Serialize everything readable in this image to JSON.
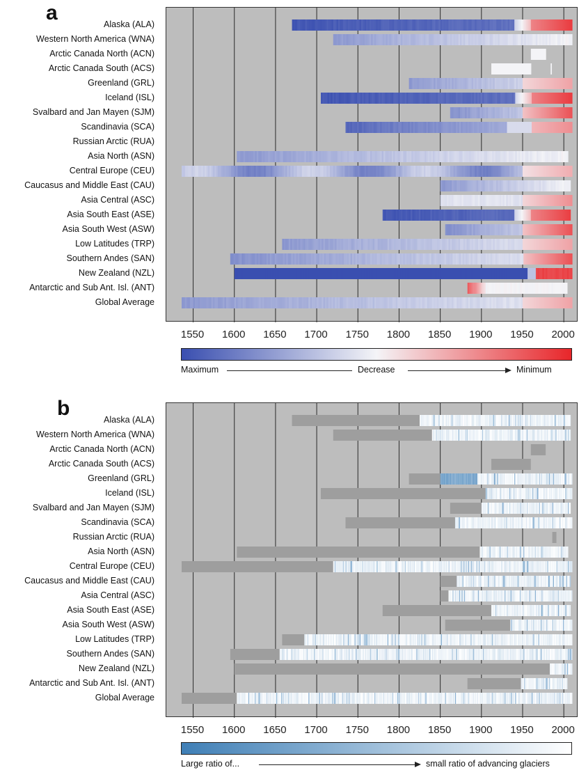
{
  "chart_data": [
    {
      "type": "heatmap",
      "panel_label": "a",
      "xticks": [
        "1550",
        "1600",
        "1650",
        "1700",
        "1750",
        "1800",
        "1850",
        "1900",
        "1950",
        "2000"
      ],
      "xlim": [
        1530,
        2012
      ],
      "regions": [
        {
          "label": "Alaska (ALA)",
          "start": 1670,
          "end": 2010,
          "pattern": "blue-red"
        },
        {
          "label": "Western North America (WNA)",
          "start": 1720,
          "end": 2010,
          "pattern": "lightblue"
        },
        {
          "label": "Arctic Canada North (ACN)",
          "start": 1960,
          "end": 1978,
          "pattern": "white"
        },
        {
          "label": "Arctic Canada South (ACS)",
          "start": 1912,
          "end": 1985,
          "pattern": "white-gap"
        },
        {
          "label": "Greenland (GRL)",
          "start": 1812,
          "end": 2010,
          "pattern": "lightblue-pink"
        },
        {
          "label": "Iceland (ISL)",
          "start": 1705,
          "end": 2010,
          "pattern": "blue-red"
        },
        {
          "label": "Svalbard and Jan Mayen (SJM)",
          "start": 1862,
          "end": 2010,
          "pattern": "lightblue-red"
        },
        {
          "label": "Scandinavia (SCA)",
          "start": 1735,
          "end": 2010,
          "pattern": "blue-pink"
        },
        {
          "label": "Russian Arctic (RUA)",
          "start": null,
          "end": null,
          "pattern": "none"
        },
        {
          "label": "Asia North (ASN)",
          "start": 1603,
          "end": 2005,
          "pattern": "lightblue"
        },
        {
          "label": "Central Europe (CEU)",
          "start": 1536,
          "end": 2010,
          "pattern": "mixed"
        },
        {
          "label": "Caucasus and Middle East (CAU)",
          "start": 1850,
          "end": 2008,
          "pattern": "lightblue"
        },
        {
          "label": "Asia Central (ASC)",
          "start": 1850,
          "end": 2010,
          "pattern": "pale-pink"
        },
        {
          "label": "Asia South East (ASE)",
          "start": 1780,
          "end": 2008,
          "pattern": "blue-red"
        },
        {
          "label": "Asia South West (ASW)",
          "start": 1856,
          "end": 2010,
          "pattern": "lightblue-red"
        },
        {
          "label": "Low Latitudes (TRP)",
          "start": 1658,
          "end": 2010,
          "pattern": "lightblue-pink"
        },
        {
          "label": "Southern Andes (SAN)",
          "start": 1595,
          "end": 2010,
          "pattern": "lightblue-red"
        },
        {
          "label": "New Zealand (NZL)",
          "start": 1600,
          "end": 2010,
          "pattern": "deepblue-red"
        },
        {
          "label": "Antarctic and Sub Ant. Isl. (ANT)",
          "start": 1883,
          "end": 2004,
          "pattern": "red-white"
        },
        {
          "label": "Global Average",
          "start": 1536,
          "end": 2010,
          "pattern": "lightblue-pink"
        }
      ],
      "colorbar": {
        "left_label": "Maximum",
        "middle_label": "Decrease",
        "right_label": "Minimum",
        "colors": [
          "#3a4fb0",
          "#f4f4f7",
          "#e8262a"
        ]
      }
    },
    {
      "type": "heatmap",
      "panel_label": "b",
      "xticks": [
        "1550",
        "1600",
        "1650",
        "1700",
        "1750",
        "1800",
        "1850",
        "1900",
        "1950",
        "2000"
      ],
      "xlim": [
        1530,
        2012
      ],
      "regions": [
        {
          "label": "Alaska (ALA)",
          "grey": [
            1670,
            1825
          ],
          "colored": [
            1825,
            2008
          ]
        },
        {
          "label": "Western North America (WNA)",
          "grey": [
            1720,
            1840
          ],
          "colored": [
            1840,
            2008
          ]
        },
        {
          "label": "Arctic Canada North (ACN)",
          "grey": [
            1960,
            1978
          ],
          "colored": null
        },
        {
          "label": "Arctic Canada South (ACS)",
          "grey": [
            1912,
            1960
          ],
          "colored": null
        },
        {
          "label": "Greenland (GRL)",
          "grey": [
            1812,
            1850
          ],
          "colored": [
            1850,
            2010
          ]
        },
        {
          "label": "Iceland (ISL)",
          "grey": [
            1705,
            1905
          ],
          "colored": [
            1905,
            2010
          ]
        },
        {
          "label": "Svalbard and Jan Mayen (SJM)",
          "grey": [
            1862,
            1900
          ],
          "colored": [
            1900,
            2008
          ]
        },
        {
          "label": "Scandinavia (SCA)",
          "grey": [
            1735,
            1868
          ],
          "colored": [
            1868,
            2010
          ]
        },
        {
          "label": "Russian Arctic (RUA)",
          "grey": [
            1986,
            1991
          ],
          "colored": null
        },
        {
          "label": "Asia North (ASN)",
          "grey": [
            1603,
            1898
          ],
          "colored": [
            1898,
            2005
          ]
        },
        {
          "label": "Central Europe (CEU)",
          "grey": [
            1536,
            1720
          ],
          "colored": [
            1720,
            2010
          ]
        },
        {
          "label": "Caucasus and Middle East (CAU)",
          "grey": [
            1850,
            1870
          ],
          "colored": [
            1870,
            2008
          ]
        },
        {
          "label": "Asia Central (ASC)",
          "grey": [
            1850,
            1860
          ],
          "colored": [
            1860,
            2010
          ]
        },
        {
          "label": "Asia South East (ASE)",
          "grey": [
            1780,
            1912
          ],
          "colored": [
            1912,
            2008
          ]
        },
        {
          "label": "Asia South West (ASW)",
          "grey": [
            1856,
            1935
          ],
          "colored": [
            1935,
            2010
          ]
        },
        {
          "label": "Low Latitudes (TRP)",
          "grey": [
            1658,
            1685
          ],
          "colored": [
            1685,
            2010
          ]
        },
        {
          "label": "Southern Andes (SAN)",
          "grey": [
            1595,
            1655
          ],
          "colored": [
            1655,
            2010
          ]
        },
        {
          "label": "New Zealand (NZL)",
          "grey": [
            1600,
            1983
          ],
          "colored": [
            1983,
            2010
          ]
        },
        {
          "label": "Antarctic and Sub Ant. Isl. (ANT)",
          "grey": [
            1883,
            1948
          ],
          "colored": [
            1948,
            2004
          ]
        },
        {
          "label": "Global Average",
          "grey": [
            1536,
            1603
          ],
          "colored": [
            1603,
            2010
          ]
        }
      ],
      "colorbar": {
        "left_label": "Large ratio of...",
        "right_label": "small ratio of advancing glaciers",
        "colors": [
          "#3f7fb6",
          "#ffffff"
        ]
      }
    }
  ]
}
